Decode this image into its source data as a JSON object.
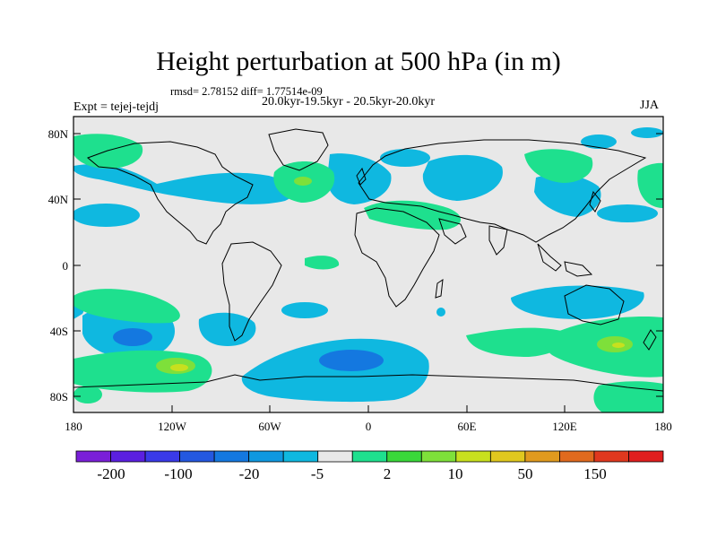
{
  "title": "Height perturbation at 500 hPa (in m)",
  "stats": "rmsd= 2.78152 diff= 1.77514e-09",
  "expt": "Expt = tejej-tejdj",
  "period": "20.0kyr-19.5kyr - 20.5kyr-20.0kyr",
  "season": "JJA",
  "lat_labels": [
    "80N",
    "40N",
    "0",
    "40S",
    "80S"
  ],
  "lon_labels": [
    "180",
    "120W",
    "60W",
    "0",
    "60E",
    "120E",
    "180"
  ],
  "colorbar": {
    "colors": [
      "#7a1fd8",
      "#5b1fe0",
      "#3a3ae8",
      "#2458e0",
      "#1478e0",
      "#0f98e0",
      "#0fb8e0",
      "#e8e8e8",
      "#1ee08e",
      "#3ad83a",
      "#7ee03a",
      "#c8e01e",
      "#e0c81e",
      "#e09a1e",
      "#e06a1e",
      "#e0381e",
      "#e01e1e"
    ],
    "labels": [
      "-200",
      "-100",
      "-20",
      "-5",
      "2",
      "10",
      "50",
      "150"
    ]
  }
}
